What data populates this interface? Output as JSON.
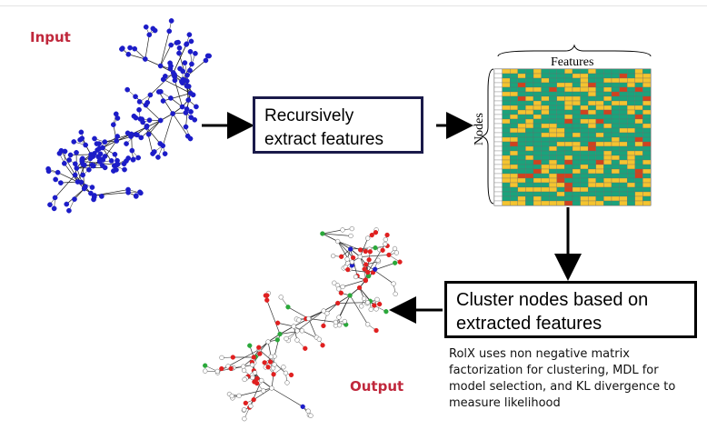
{
  "labels": {
    "input": "Input",
    "output": "Output"
  },
  "steps": {
    "extract": "Recursively\nextract features",
    "cluster": "Cluster nodes based on\nextracted features"
  },
  "matrix": {
    "features_label": "Features",
    "nodes_label": "Nodes",
    "colors": {
      "green": "#1aa37c",
      "yellow": "#f4c430",
      "red": "#d0421e"
    }
  },
  "description": "RolX uses non negative matrix factorization for clustering, MDL for model selection, and KL divergence to measure likelihood",
  "colors": {
    "input_nodes": "#1c1cc8",
    "output_red": "#e02020",
    "output_green": "#2aa83a",
    "output_blue": "#1c1cc8",
    "label_red": "#c0283c"
  }
}
